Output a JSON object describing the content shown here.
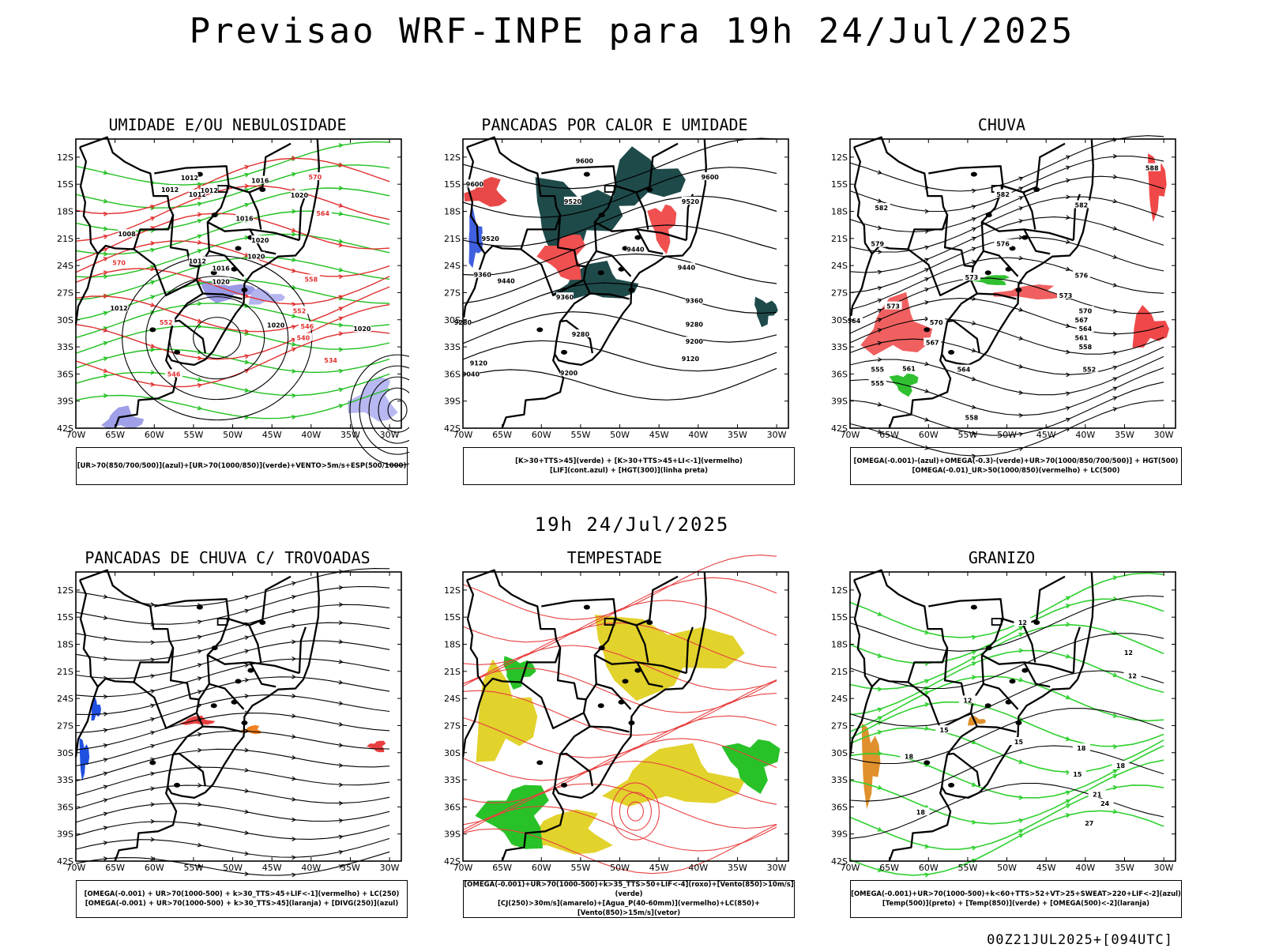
{
  "header": {
    "title": "Previsao WRF-INPE  para 19h 24/Jul/2025",
    "subtitle": "19h 24/Jul/2025",
    "footer": "00Z21JUL2025+[094UTC]"
  },
  "axes": {
    "lat_labels": [
      "12S",
      "15S",
      "18S",
      "21S",
      "24S",
      "27S",
      "30S",
      "33S",
      "36S",
      "39S",
      "42S"
    ],
    "lon_labels": [
      "70W",
      "65W",
      "60W",
      "55W",
      "50W",
      "45W",
      "40W",
      "35W",
      "30W"
    ]
  },
  "panels": [
    {
      "id": "umidade",
      "title": "UMIDADE E/OU NEBULOSIDADE",
      "legend": [
        "[UR>70(850/700/500)](azul)+[UR>70(1000/850)](verde)+VENTO>5m/s+ESP(500/1000)"
      ],
      "labels": [
        {
          "t": "1012",
          "lon": -58,
          "lat": -15.6
        },
        {
          "t": "1012",
          "lon": -55.5,
          "lat": -14.3
        },
        {
          "t": "1012",
          "lon": -54.5,
          "lat": -16.1
        },
        {
          "t": "1012",
          "lon": -53,
          "lat": -15.7
        },
        {
          "t": "1016",
          "lon": -46.5,
          "lat": -14.6
        },
        {
          "t": "1020",
          "lon": -41.5,
          "lat": -16.2
        },
        {
          "t": "1016",
          "lon": -48.5,
          "lat": -18.8
        },
        {
          "t": "1020",
          "lon": -46.5,
          "lat": -21.2
        },
        {
          "t": "1020",
          "lon": -47,
          "lat": -23.0
        },
        {
          "t": "1012",
          "lon": -54.5,
          "lat": -23.5
        },
        {
          "t": "1016",
          "lon": -51.5,
          "lat": -24.3
        },
        {
          "t": "1020",
          "lon": -51.5,
          "lat": -25.8
        },
        {
          "t": "1008",
          "lon": -63.5,
          "lat": -20.5
        },
        {
          "t": "1012",
          "lon": -64.5,
          "lat": -28.7
        },
        {
          "t": "1020",
          "lon": -44.5,
          "lat": -30.6
        },
        {
          "t": "1020",
          "lon": -33.5,
          "lat": -31.0
        }
      ],
      "red_labels": [
        {
          "t": "570",
          "lon": -39.5,
          "lat": -14.2
        },
        {
          "t": "564",
          "lon": -38.5,
          "lat": -18.2
        },
        {
          "t": "570",
          "lon": -64.5,
          "lat": -23.7
        },
        {
          "t": "558",
          "lon": -40,
          "lat": -25.5
        },
        {
          "t": "552",
          "lon": -41.5,
          "lat": -29.0
        },
        {
          "t": "546",
          "lon": -40.5,
          "lat": -30.7
        },
        {
          "t": "552",
          "lon": -58.5,
          "lat": -30.3
        },
        {
          "t": "540",
          "lon": -41,
          "lat": -32.0
        },
        {
          "t": "534",
          "lon": -37.5,
          "lat": -34.5
        },
        {
          "t": "546",
          "lon": -57.5,
          "lat": -36.0
        }
      ]
    },
    {
      "id": "pancadas-calor",
      "title": "PANCADAS POR CALOR E UMIDADE",
      "legend": [
        "[K>30+TTS>45](verde) + [K>30+TTS>45+LI<-1](vermelho)",
        "[LIF](cont.azul) + [HGT(300)](linha preta)"
      ],
      "labels": [
        {
          "t": "9600",
          "lon": -54.5,
          "lat": -12.4
        },
        {
          "t": "9600",
          "lon": -68.5,
          "lat": -15.0
        },
        {
          "t": "9600",
          "lon": -38.5,
          "lat": -14.2
        },
        {
          "t": "9520",
          "lon": -56,
          "lat": -16.9
        },
        {
          "t": "9520",
          "lon": -41,
          "lat": -16.9
        },
        {
          "t": "9520",
          "lon": -66.5,
          "lat": -21.0
        },
        {
          "t": "9440",
          "lon": -48,
          "lat": -22.2
        },
        {
          "t": "9440",
          "lon": -64.5,
          "lat": -25.7
        },
        {
          "t": "9360",
          "lon": -67.5,
          "lat": -25.0
        },
        {
          "t": "9440",
          "lon": -41.5,
          "lat": -24.2
        },
        {
          "t": "9360",
          "lon": -57,
          "lat": -27.5
        },
        {
          "t": "9360",
          "lon": -40.5,
          "lat": -27.9
        },
        {
          "t": "9280",
          "lon": -70,
          "lat": -30.3
        },
        {
          "t": "9280",
          "lon": -55,
          "lat": -31.6
        },
        {
          "t": "9280",
          "lon": -40.5,
          "lat": -30.5
        },
        {
          "t": "9200",
          "lon": -40.5,
          "lat": -32.4
        },
        {
          "t": "9120",
          "lon": -41,
          "lat": -34.3
        },
        {
          "t": "9120",
          "lon": -68,
          "lat": -34.8
        },
        {
          "t": "9040",
          "lon": -69,
          "lat": -36.0
        },
        {
          "t": "9200",
          "lon": -56.5,
          "lat": -35.9
        }
      ]
    },
    {
      "id": "chuva",
      "title": "CHUVA",
      "legend": [
        "[OMEGA(-0.001)-(azul)+OMEGA(-0.3)-(verde)+UR>70(1000/850/700/500)] + HGT(500)",
        "[OMEGA(-0.01)_UR>50(1000/850)(vermelho) + LC(500)"
      ],
      "labels": [
        {
          "t": "588",
          "lon": -31.5,
          "lat": -13.2
        },
        {
          "t": "582",
          "lon": -50.5,
          "lat": -16.1
        },
        {
          "t": "582",
          "lon": -66,
          "lat": -17.6
        },
        {
          "t": "582",
          "lon": -40.5,
          "lat": -17.3
        },
        {
          "t": "579",
          "lon": -66.5,
          "lat": -21.6
        },
        {
          "t": "576",
          "lon": -50.5,
          "lat": -21.6
        },
        {
          "t": "576",
          "lon": -40.5,
          "lat": -25.1
        },
        {
          "t": "573",
          "lon": -54.5,
          "lat": -25.3
        },
        {
          "t": "573",
          "lon": -64.5,
          "lat": -28.5
        },
        {
          "t": "573",
          "lon": -42.5,
          "lat": -27.3
        },
        {
          "t": "570",
          "lon": -40,
          "lat": -29.0
        },
        {
          "t": "567",
          "lon": -40.5,
          "lat": -30.0
        },
        {
          "t": "570",
          "lon": -59,
          "lat": -30.3
        },
        {
          "t": "564",
          "lon": -40,
          "lat": -31.0
        },
        {
          "t": "567",
          "lon": -59.5,
          "lat": -32.5
        },
        {
          "t": "564",
          "lon": -69.5,
          "lat": -30.1
        },
        {
          "t": "561",
          "lon": -40.5,
          "lat": -32.0
        },
        {
          "t": "558",
          "lon": -40,
          "lat": -33.0
        },
        {
          "t": "564",
          "lon": -55.5,
          "lat": -35.5
        },
        {
          "t": "561",
          "lon": -62.5,
          "lat": -35.4
        },
        {
          "t": "555",
          "lon": -66.5,
          "lat": -35.5
        },
        {
          "t": "552",
          "lon": -39.5,
          "lat": -35.5
        },
        {
          "t": "555",
          "lon": -66.5,
          "lat": -37.0
        },
        {
          "t": "558",
          "lon": -54.5,
          "lat": -40.8
        }
      ]
    },
    {
      "id": "trovoadas",
      "title": "PANCADAS DE CHUVA C/ TROVOADAS",
      "legend": [
        "[OMEGA(-0.001) + UR>70(1000-500) + k>30_TTS>45+LIF<-1](vermelho) + LC(250)",
        "[OMEGA(-0.001) + UR>70(1000-500) + k>30_TTS>45](laranja) + [DIVG(250)](azul)"
      ],
      "labels": []
    },
    {
      "id": "tempestade",
      "title": "TEMPESTADE",
      "legend": [
        "[OMEGA(-0.001)+UR>70(1000-500)+k>35_TTS>50+LIF<-4](roxo)+[Vento(850)>10m/s](verde)",
        "[CJ(250)>30m/s](amarelo)+[Agua_P(40-60mm)](vermelho)+LC(850)+[Vento(850)>15m/s](vetor)"
      ],
      "labels": []
    },
    {
      "id": "granizo",
      "title": "GRANIZO",
      "legend": [
        "[OMEGA(-0.001)+UR>70(1000-500)+k<60+TTS>52+VT>25+SWEAT>220+LIF<-2](azul)",
        "[Temp(500)](preto) + [Temp(850)](verde) + [OMEGA(500)<-2](laranja)"
      ],
      "labels": [
        {
          "t": "12",
          "lon": -48,
          "lat": -15.6
        },
        {
          "t": "12",
          "lon": -34.5,
          "lat": -18.9
        },
        {
          "t": "12",
          "lon": -34,
          "lat": -21.5
        },
        {
          "t": "12",
          "lon": -55,
          "lat": -24.2
        },
        {
          "t": "15",
          "lon": -48.5,
          "lat": -28.8
        },
        {
          "t": "15",
          "lon": -58,
          "lat": -27.5
        },
        {
          "t": "18",
          "lon": -40.5,
          "lat": -29.5
        },
        {
          "t": "18",
          "lon": -62.5,
          "lat": -30.4
        },
        {
          "t": "15",
          "lon": -41,
          "lat": -32.4
        },
        {
          "t": "18",
          "lon": -35.5,
          "lat": -31.4
        },
        {
          "t": "21",
          "lon": -38.5,
          "lat": -34.6
        },
        {
          "t": "24",
          "lon": -37.5,
          "lat": -35.6
        },
        {
          "t": "27",
          "lon": -39.5,
          "lat": -37.8
        },
        {
          "t": "18",
          "lon": -61,
          "lat": -36.6
        }
      ]
    }
  ]
}
